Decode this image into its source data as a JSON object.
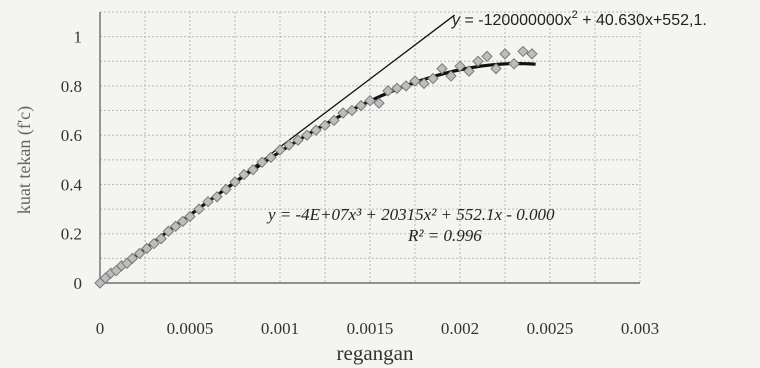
{
  "chart_data": {
    "type": "scatter",
    "xlabel": "regangan",
    "ylabel": "kuat tekan (f'c)",
    "xlim": [
      0,
      0.003
    ],
    "ylim": [
      0,
      1.1
    ],
    "x_ticks": [
      "0",
      "0.0005",
      "0.001",
      "0.0015",
      "0.002",
      "0.0025",
      "0.003"
    ],
    "y_ticks": [
      "0",
      "0.2",
      "0.4",
      "0.6",
      "0.8",
      "1"
    ],
    "grid": true,
    "annotations": {
      "linear_eq_prefix": "y",
      "linear_eq_body": " = -120000000x",
      "linear_eq_exp": "2",
      "linear_eq_tail": " + 40.630x+552,1.",
      "poly_eq": "y = -4E+07x³ + 20315x² + 552.1x - 0.000",
      "r2": "R² = 0.996"
    },
    "series": [
      {
        "marker": "diamond",
        "x": [
          0,
          3e-05,
          6e-05,
          9e-05,
          0.00012,
          0.00015,
          0.00018,
          0.00022,
          0.00026,
          0.0003,
          0.00034,
          0.00038,
          0.00042,
          0.00046,
          0.0005,
          0.00055,
          0.0006,
          0.00065,
          0.0007,
          0.00075,
          0.0008,
          0.00085,
          0.0009,
          0.00095,
          0.001,
          0.00105,
          0.0011,
          0.00115,
          0.0012,
          0.00125,
          0.0013,
          0.00135,
          0.0014,
          0.00145,
          0.0015,
          0.00155,
          0.0016,
          0.00165,
          0.0017,
          0.00175,
          0.0018,
          0.00185,
          0.0019,
          0.00195,
          0.002,
          0.00205,
          0.0021,
          0.00215,
          0.0022,
          0.00225,
          0.0023,
          0.00235,
          0.0024
        ],
        "y": [
          0.0,
          0.02,
          0.04,
          0.05,
          0.07,
          0.08,
          0.1,
          0.12,
          0.14,
          0.16,
          0.18,
          0.21,
          0.23,
          0.25,
          0.27,
          0.3,
          0.33,
          0.35,
          0.38,
          0.41,
          0.44,
          0.46,
          0.49,
          0.51,
          0.54,
          0.56,
          0.58,
          0.6,
          0.62,
          0.64,
          0.66,
          0.69,
          0.7,
          0.72,
          0.74,
          0.73,
          0.78,
          0.79,
          0.8,
          0.82,
          0.81,
          0.83,
          0.87,
          0.84,
          0.88,
          0.86,
          0.9,
          0.92,
          0.87,
          0.93,
          0.89,
          0.94,
          0.93
        ]
      }
    ],
    "fit_lines": [
      {
        "type": "linear",
        "slope": 552.1,
        "x_range": [
          0,
          0.00197
        ]
      },
      {
        "type": "cubic",
        "coef": [
          -40000000,
          20315,
          552.1,
          0
        ],
        "x_range": [
          0,
          0.00242
        ]
      }
    ]
  }
}
